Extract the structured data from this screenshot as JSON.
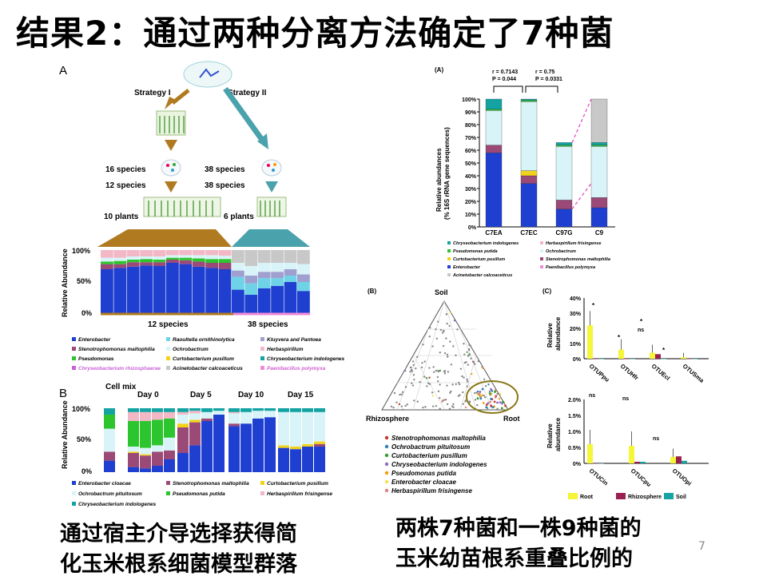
{
  "slide": {
    "title": "结果2：通过两种分离方法确定了7种菌",
    "page_number": "7",
    "caption_left": [
      "通过宿主介导选择获得简",
      "化玉米根系细菌模型群落"
    ],
    "caption_right": [
      "两株7种菌和一株9种菌的",
      "玉米幼苗根系重叠比例的"
    ]
  },
  "panelA": {
    "label": "A",
    "strategy1": "Strategy I",
    "strategy2": "Strategy II",
    "s1_species1": "16 species",
    "s1_species2": "12 species",
    "s1_plants": "10 plants",
    "s2_species1": "38 species",
    "s2_species2": "38 species",
    "s2_plants": "6 plants",
    "ylabel": "Relative Abundance",
    "ticks": [
      "100%",
      "50%",
      "0%"
    ],
    "group1": "12 species",
    "group2": "38 species",
    "legend": [
      "Enterobacter",
      "Raoultella ornithinolytica",
      "Kluyvera and Pantoea",
      "Stenotrophomonas maltophilia",
      "Ochrobactrum",
      "Herbaspirillum",
      "Pseudomonas",
      "Curtobacterium pusillum",
      "Chryseobacterium indologenes",
      "Chryseobacterium rhizosphaerae",
      "Acinetobacter calcoaceticus",
      "Paenibacillus polymyxa"
    ],
    "legend_colors": [
      "#1f3fd0",
      "#6fd3e8",
      "#a0a0d0",
      "#9b4a78",
      "#d8f4f8",
      "#f2b8c6",
      "#2dc52d",
      "#f2d21a",
      "#14a3a3",
      "#c95fd9",
      "#c8c8c8",
      "#f08ad8"
    ]
  },
  "panelB": {
    "label": "B",
    "columns": [
      "Cell mix",
      "Day 0",
      "Day 5",
      "Day 10",
      "Day 15"
    ],
    "ylabel": "Relative Abundance",
    "ticks": [
      "100%",
      "50%",
      "0%"
    ],
    "legend": [
      "Enterobacter cloacae",
      "Stenotrophomonas maltophilia",
      "Curtobacterium pusillum",
      "Ochrobactrum pituitosum",
      "Pseudomonas putida",
      "Herbaspirillum frisingense",
      "Chryseobacterium indologenes"
    ],
    "legend_colors": [
      "#1f3fd0",
      "#9b4a78",
      "#f2d21a",
      "#d8f4f8",
      "#2dc52d",
      "#f2b8c6",
      "#14a3a3"
    ]
  },
  "panelRA": {
    "label": "(A)",
    "stat1": [
      "r = 0.7143",
      "P = 0.044"
    ],
    "stat2": [
      "r = 0.75",
      "P = 0.0331"
    ],
    "ylabel1": "Relative abundances",
    "ylabel2": "(% 16S rRNA gene sequences)",
    "ticks": [
      "100%",
      "90%",
      "80%",
      "70%",
      "60%",
      "50%",
      "40%",
      "30%",
      "20%",
      "10%",
      "0%"
    ],
    "categories": [
      "C7EA",
      "C7EC",
      "C97G",
      "C9"
    ],
    "legend": [
      "Chryseobacterium indologenes",
      "Herbaspirillum frisingense",
      "Pseudomonas putida",
      "Ochrobactrum",
      "Curtobacterium pusillum",
      "Stenotrophomonas maltophilia",
      "Enterobacter",
      "Paenibacillus polymyxa",
      "Acinetobacter calcoaceticus"
    ],
    "legend_colors": [
      "#14a3a3",
      "#f2b8c6",
      "#2dc52d",
      "#d8f4f8",
      "#f2d21a",
      "#9b4a78",
      "#1f3fd0",
      "#f08ad8",
      "#c8c8c8"
    ]
  },
  "panelRB": {
    "label": "(B)",
    "top": "Soil",
    "left": "Rhizosphere",
    "right": "Root",
    "legend": [
      "Stenotrophomonas maltophilia",
      "Ochrobactrum pituitosum",
      "Curtobacterium pusillum",
      "Chryseobacterium indologenes",
      "Pseudomonas putida",
      "Enterobacter cloacae",
      "Herbaspirillum frisingense"
    ],
    "legend_colors": [
      "#c0392b",
      "#2c7fb8",
      "#33a02c",
      "#8e6bbf",
      "#f39c12",
      "#f1e05a",
      "#e08080"
    ]
  },
  "panelRC": {
    "label": "(C)",
    "ylabel1": "Relative",
    "ylabel2": "abundance",
    "top_ticks": [
      "40%",
      "30%",
      "20%",
      "10%",
      "0%"
    ],
    "top_categories": [
      "OTUPpu",
      "OTUHfr",
      "OTUEcl",
      "OTUSma"
    ],
    "bottom_ticks": [
      "2.0%",
      "1.5%",
      "1.0%",
      "0.5%",
      "0%"
    ],
    "bottom_categories": [
      "OTUCin",
      "OTUCpu",
      "OTUOpi"
    ],
    "sig": [
      "*",
      "ns"
    ],
    "legend": [
      "Root",
      "Rhizosphere",
      "Soil"
    ],
    "legend_colors": [
      "#f5f53a",
      "#9b2050",
      "#16a3a3"
    ]
  },
  "chart_data": [
    {
      "type": "bar",
      "title": "",
      "categories": [
        "C7EA",
        "C7EC",
        "C97G",
        "C9"
      ],
      "ylabel": "Relative abundances (% 16S rRNA gene sequences)",
      "ylim": [
        0,
        100
      ],
      "stacked": true,
      "series": [
        {
          "name": "Enterobacter",
          "values": [
            58,
            34,
            14,
            15
          ]
        },
        {
          "name": "Stenotrophomonas maltophilia",
          "values": [
            6,
            6,
            7,
            8
          ]
        },
        {
          "name": "Curtobacterium pusillum",
          "values": [
            0,
            4,
            0,
            0
          ]
        },
        {
          "name": "Ochrobactrum",
          "values": [
            27,
            54,
            42,
            40
          ]
        },
        {
          "name": "Pseudomonas putida",
          "values": [
            1,
            1,
            1,
            1
          ]
        },
        {
          "name": "Chryseobacterium indologenes",
          "values": [
            8,
            1,
            2,
            2
          ]
        },
        {
          "name": "Acinetobacter calcoaceticus",
          "values": [
            0,
            0,
            0,
            34
          ]
        }
      ]
    },
    {
      "type": "bar",
      "title": "",
      "categories": [
        "OTUPpu",
        "OTUHfr",
        "OTUEcl",
        "OTUSma"
      ],
      "ylabel": "Relative abundance",
      "ylim": [
        0,
        40
      ],
      "series": [
        {
          "name": "Root",
          "values": [
            22,
            6,
            4,
            1
          ]
        },
        {
          "name": "Rhizosphere",
          "values": [
            0,
            0,
            3,
            0
          ]
        },
        {
          "name": "Soil",
          "values": [
            0,
            0,
            0,
            0
          ]
        }
      ]
    },
    {
      "type": "bar",
      "title": "",
      "categories": [
        "OTUCin",
        "OTUCpu",
        "OTUOpi"
      ],
      "ylabel": "Relative abundance",
      "ylim": [
        0,
        2.0
      ],
      "series": [
        {
          "name": "Root",
          "values": [
            0.6,
            0.55,
            0.2
          ]
        },
        {
          "name": "Rhizosphere",
          "values": [
            0,
            0.05,
            0.22
          ]
        },
        {
          "name": "Soil",
          "values": [
            0,
            0.05,
            0.08
          ]
        }
      ]
    }
  ]
}
